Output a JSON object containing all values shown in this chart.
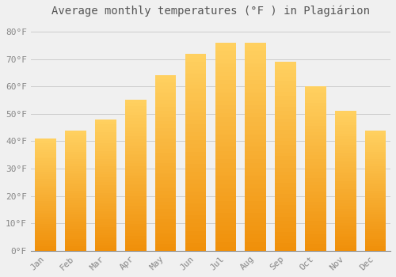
{
  "title": "Average monthly temperatures (°F ) in Plagiárion",
  "months": [
    "Jan",
    "Feb",
    "Mar",
    "Apr",
    "May",
    "Jun",
    "Jul",
    "Aug",
    "Sep",
    "Oct",
    "Nov",
    "Dec"
  ],
  "values": [
    41,
    44,
    48,
    55,
    64,
    72,
    76,
    76,
    69,
    60,
    51,
    44
  ],
  "bar_color_light": "#FFD060",
  "bar_color_dark": "#F0900A",
  "background_color": "#f0f0f0",
  "yticks": [
    0,
    10,
    20,
    30,
    40,
    50,
    60,
    70,
    80
  ],
  "ylim": [
    0,
    83
  ],
  "grid_color": "#cccccc",
  "title_fontsize": 10,
  "tick_fontsize": 8,
  "tick_color": "#888888",
  "title_color": "#555555",
  "bar_width": 0.7
}
